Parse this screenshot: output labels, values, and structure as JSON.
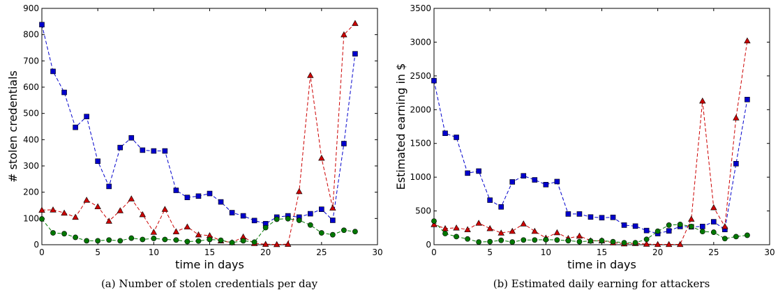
{
  "chart_data": [
    {
      "type": "line",
      "title": "",
      "caption": "(a) Number of stolen credentials per day",
      "xlabel": "time in days",
      "ylabel": "# stolen credentials",
      "xlim": [
        0,
        30
      ],
      "ylim": [
        0,
        900
      ],
      "xticks": [
        0,
        5,
        10,
        15,
        20,
        25,
        30
      ],
      "yticks": [
        0,
        100,
        200,
        300,
        400,
        500,
        600,
        700,
        800,
        900
      ],
      "grid": false,
      "x": [
        0,
        1,
        2,
        3,
        4,
        5,
        6,
        7,
        8,
        9,
        10,
        11,
        12,
        13,
        14,
        15,
        16,
        17,
        18,
        19,
        20,
        21,
        22,
        23,
        24,
        25,
        26,
        27,
        28
      ],
      "series": [
        {
          "color": "#0000cc",
          "marker": "square",
          "values": [
            838,
            660,
            580,
            447,
            488,
            318,
            222,
            370,
            407,
            360,
            357,
            357,
            207,
            180,
            185,
            195,
            163,
            122,
            110,
            92,
            80,
            105,
            110,
            105,
            118,
            135,
            93,
            385,
            727
          ]
        },
        {
          "color": "#cc0000",
          "marker": "triangle",
          "values": [
            132,
            133,
            121,
            105,
            170,
            145,
            90,
            130,
            175,
            115,
            48,
            135,
            50,
            68,
            38,
            35,
            15,
            8,
            30,
            5,
            2,
            1,
            2,
            203,
            645,
            330,
            140,
            800,
            843
          ]
        },
        {
          "color": "#007700",
          "marker": "circle",
          "values": [
            98,
            45,
            42,
            28,
            15,
            15,
            18,
            15,
            25,
            20,
            24,
            20,
            18,
            12,
            14,
            20,
            17,
            8,
            15,
            10,
            65,
            97,
            99,
            93,
            75,
            45,
            38,
            55,
            50
          ]
        }
      ]
    },
    {
      "type": "line",
      "title": "",
      "caption": "(b) Estimated daily earning for attackers",
      "xlabel": "time in days",
      "ylabel": "Estimated earning in $",
      "xlim": [
        0,
        30
      ],
      "ylim": [
        0,
        3500
      ],
      "xticks": [
        0,
        5,
        10,
        15,
        20,
        25,
        30
      ],
      "yticks": [
        0,
        500,
        1000,
        1500,
        2000,
        2500,
        3000,
        3500
      ],
      "grid": false,
      "x": [
        0,
        1,
        2,
        3,
        4,
        5,
        6,
        7,
        8,
        9,
        10,
        11,
        12,
        13,
        14,
        15,
        16,
        17,
        18,
        19,
        20,
        21,
        22,
        23,
        24,
        25,
        26,
        27,
        28
      ],
      "series": [
        {
          "color": "#0000cc",
          "marker": "square",
          "values": [
            2430,
            1650,
            1590,
            1060,
            1090,
            660,
            560,
            930,
            1020,
            960,
            890,
            935,
            455,
            455,
            410,
            400,
            405,
            290,
            275,
            210,
            165,
            205,
            270,
            265,
            270,
            340,
            225,
            1200,
            2150
          ]
        },
        {
          "color": "#cc0000",
          "marker": "triangle",
          "values": [
            300,
            240,
            250,
            225,
            320,
            240,
            175,
            200,
            310,
            200,
            100,
            180,
            95,
            130,
            60,
            60,
            30,
            15,
            20,
            10,
            5,
            5,
            5,
            380,
            2130,
            550,
            270,
            1880,
            3020
          ]
        },
        {
          "color": "#007700",
          "marker": "circle",
          "values": [
            350,
            165,
            120,
            85,
            40,
            45,
            65,
            40,
            70,
            70,
            75,
            70,
            60,
            45,
            55,
            60,
            45,
            30,
            30,
            80,
            200,
            290,
            300,
            270,
            195,
            185,
            90,
            120,
            140
          ]
        }
      ]
    }
  ]
}
